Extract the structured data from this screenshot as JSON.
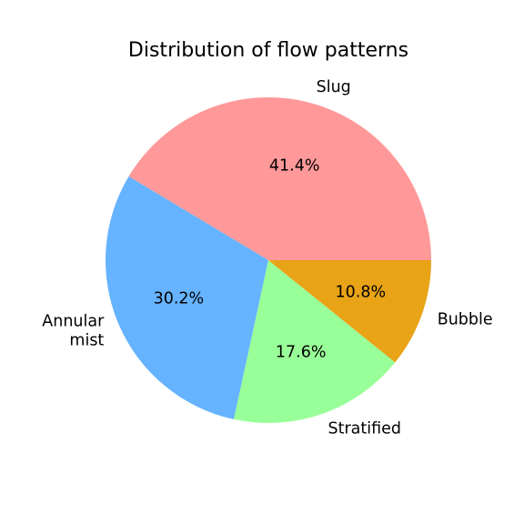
{
  "chart_data": {
    "type": "pie",
    "title": "Distribution of flow patterns",
    "slices": [
      {
        "label": "Slug",
        "value": 41.4,
        "pct_label": "41.4%",
        "color": "#ff9999"
      },
      {
        "label": "Annular\nmist",
        "value": 30.2,
        "pct_label": "30.2%",
        "color": "#66b3ff"
      },
      {
        "label": "Stratified",
        "value": 17.6,
        "pct_label": "17.6%",
        "color": "#99ff99"
      },
      {
        "label": "Bubble",
        "value": 10.8,
        "pct_label": "10.8%",
        "color": "#e8a317"
      }
    ],
    "start_angle_deg": 0,
    "direction": "counterclockwise",
    "legend": "none"
  }
}
